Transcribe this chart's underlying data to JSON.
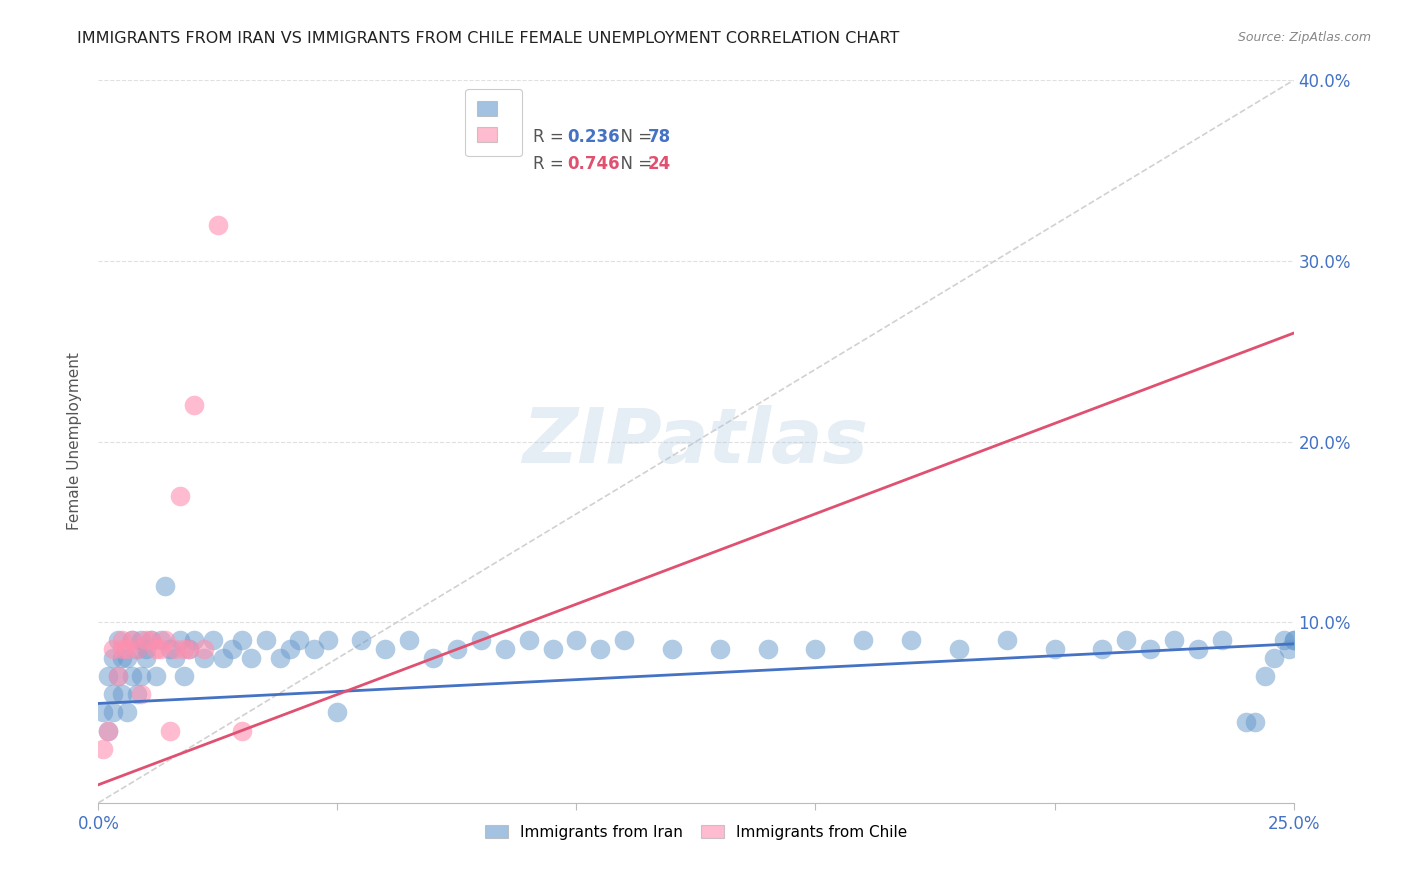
{
  "title": "IMMIGRANTS FROM IRAN VS IMMIGRANTS FROM CHILE FEMALE UNEMPLOYMENT CORRELATION CHART",
  "source": "Source: ZipAtlas.com",
  "ylabel": "Female Unemployment",
  "xlim": [
    0.0,
    0.25
  ],
  "ylim": [
    0.0,
    0.4
  ],
  "x_ticks": [
    0.0,
    0.05,
    0.1,
    0.15,
    0.2,
    0.25
  ],
  "y_ticks": [
    0.0,
    0.1,
    0.2,
    0.3,
    0.4
  ],
  "x_tick_labels": [
    "0.0%",
    "",
    "",
    "",
    "",
    "25.0%"
  ],
  "y_tick_labels_right": [
    "",
    "10.0%",
    "20.0%",
    "30.0%",
    "40.0%"
  ],
  "iran_color": "#6699CC",
  "chile_color": "#FF8FAF",
  "iran_R": 0.236,
  "iran_N": 78,
  "chile_R": 0.746,
  "chile_N": 24,
  "legend_label_iran": "Immigrants from Iran",
  "legend_label_chile": "Immigrants from Chile",
  "watermark": "ZIPatlas",
  "background_color": "#ffffff",
  "grid_color": "#e0e0e0",
  "iran_line_color": "#4472C4",
  "chile_line_color": "#E05070",
  "diag_color": "#cccccc",
  "right_axis_color": "#4472C4",
  "iran_scatter_x": [
    0.001,
    0.002,
    0.002,
    0.003,
    0.003,
    0.003,
    0.004,
    0.004,
    0.005,
    0.005,
    0.006,
    0.006,
    0.007,
    0.007,
    0.008,
    0.008,
    0.009,
    0.009,
    0.01,
    0.01,
    0.011,
    0.012,
    0.013,
    0.014,
    0.015,
    0.016,
    0.017,
    0.018,
    0.019,
    0.02,
    0.022,
    0.024,
    0.026,
    0.028,
    0.03,
    0.032,
    0.035,
    0.038,
    0.04,
    0.042,
    0.045,
    0.048,
    0.05,
    0.055,
    0.06,
    0.065,
    0.07,
    0.075,
    0.08,
    0.085,
    0.09,
    0.095,
    0.1,
    0.105,
    0.11,
    0.12,
    0.13,
    0.14,
    0.15,
    0.16,
    0.17,
    0.18,
    0.19,
    0.2,
    0.21,
    0.215,
    0.22,
    0.225,
    0.23,
    0.235,
    0.24,
    0.242,
    0.244,
    0.246,
    0.248,
    0.249,
    0.25,
    0.25
  ],
  "iran_scatter_y": [
    0.05,
    0.07,
    0.04,
    0.06,
    0.08,
    0.05,
    0.07,
    0.09,
    0.06,
    0.08,
    0.05,
    0.08,
    0.07,
    0.09,
    0.06,
    0.085,
    0.07,
    0.09,
    0.085,
    0.08,
    0.09,
    0.07,
    0.09,
    0.12,
    0.085,
    0.08,
    0.09,
    0.07,
    0.085,
    0.09,
    0.08,
    0.09,
    0.08,
    0.085,
    0.09,
    0.08,
    0.09,
    0.08,
    0.085,
    0.09,
    0.085,
    0.09,
    0.05,
    0.09,
    0.085,
    0.09,
    0.08,
    0.085,
    0.09,
    0.085,
    0.09,
    0.085,
    0.09,
    0.085,
    0.09,
    0.085,
    0.085,
    0.085,
    0.085,
    0.09,
    0.09,
    0.085,
    0.09,
    0.085,
    0.085,
    0.09,
    0.085,
    0.09,
    0.085,
    0.09,
    0.045,
    0.045,
    0.07,
    0.08,
    0.09,
    0.085,
    0.09,
    0.09
  ],
  "chile_scatter_x": [
    0.001,
    0.002,
    0.003,
    0.004,
    0.005,
    0.005,
    0.006,
    0.007,
    0.008,
    0.009,
    0.01,
    0.011,
    0.012,
    0.013,
    0.014,
    0.015,
    0.016,
    0.017,
    0.018,
    0.019,
    0.02,
    0.022,
    0.025,
    0.03
  ],
  "chile_scatter_y": [
    0.03,
    0.04,
    0.085,
    0.07,
    0.09,
    0.085,
    0.085,
    0.09,
    0.085,
    0.06,
    0.09,
    0.09,
    0.085,
    0.085,
    0.09,
    0.04,
    0.085,
    0.17,
    0.085,
    0.085,
    0.22,
    0.085,
    0.32,
    0.04
  ],
  "iran_line_x0": 0.0,
  "iran_line_y0": 0.055,
  "iran_line_x1": 0.25,
  "iran_line_y1": 0.088,
  "chile_line_x0": 0.0,
  "chile_line_y0": 0.01,
  "chile_line_x1": 0.25,
  "chile_line_y1": 0.26
}
